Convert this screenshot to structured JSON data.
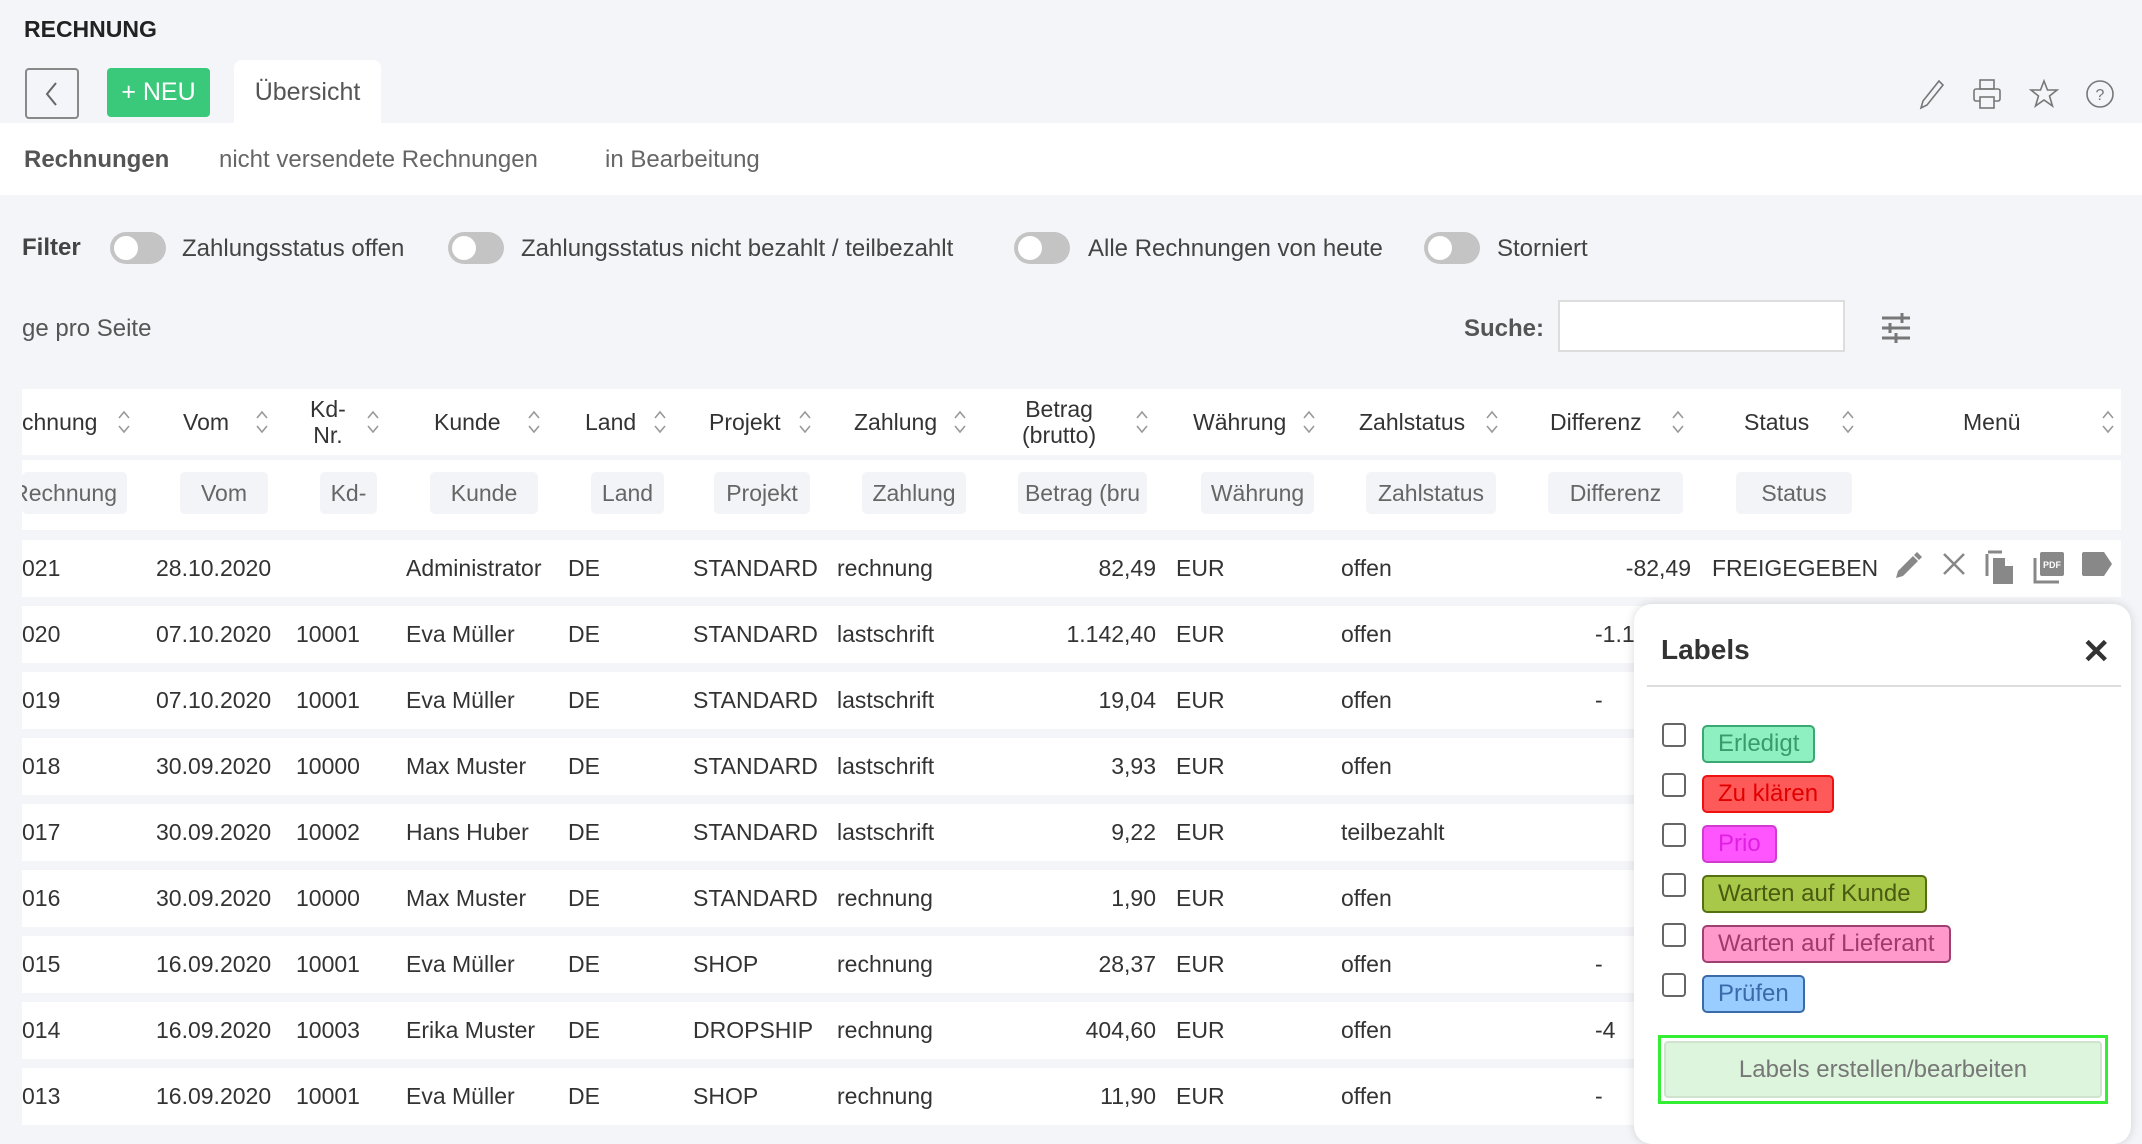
{
  "header": {
    "title": "RECHNUNG",
    "new_label": "+ NEU",
    "tab_label": "Übersicht"
  },
  "subtabs": [
    "Rechnungen",
    "nicht versendete Rechnungen",
    "in Bearbeitung"
  ],
  "filter": {
    "label": "Filter",
    "toggles": [
      {
        "label": "Zahlungsstatus offen",
        "on": false
      },
      {
        "label": "Zahlungsstatus nicht bezahlt / teilbezahlt",
        "on": false
      },
      {
        "label": "Alle Rechnungen von heute",
        "on": false
      },
      {
        "label": "Storniert",
        "on": false
      }
    ]
  },
  "per_page_label": "ge pro Seite",
  "search": {
    "label": "Suche:",
    "value": ""
  },
  "columns": [
    "chnung",
    "Vom",
    "Kd-\nNr.",
    "Kunde",
    "Land",
    "Projekt",
    "Zahlung",
    "Betrag\n(brutto)",
    "Währung",
    "Zahlstatus",
    "Differenz",
    "Status",
    "Menü"
  ],
  "column_filters": [
    "Rechnung",
    "Vom",
    "Kd-",
    "Kunde",
    "Land",
    "Projekt",
    "Zahlung",
    "Betrag (bru",
    "Währung",
    "Zahlstatus",
    "Differenz",
    "Status"
  ],
  "rows": [
    {
      "nr": "021",
      "vom": "28.10.2020",
      "kd": "",
      "kunde": "Administrator",
      "land": "DE",
      "projekt": "STANDARD",
      "zahlung": "rechnung",
      "betrag": "82,49",
      "waehrung": "EUR",
      "zahlstatus": "offen",
      "differenz": "-82,49",
      "status": "FREIGEGEBEN"
    },
    {
      "nr": "020",
      "vom": "07.10.2020",
      "kd": "10001",
      "kunde": "Eva Müller",
      "land": "DE",
      "projekt": "STANDARD",
      "zahlung": "lastschrift",
      "betrag": "1.142,40",
      "waehrung": "EUR",
      "zahlstatus": "offen",
      "differenz": "-1.1",
      "status": ""
    },
    {
      "nr": "019",
      "vom": "07.10.2020",
      "kd": "10001",
      "kunde": "Eva Müller",
      "land": "DE",
      "projekt": "STANDARD",
      "zahlung": "lastschrift",
      "betrag": "19,04",
      "waehrung": "EUR",
      "zahlstatus": "offen",
      "differenz": "-",
      "status": ""
    },
    {
      "nr": "018",
      "vom": "30.09.2020",
      "kd": "10000",
      "kunde": "Max Muster",
      "land": "DE",
      "projekt": "STANDARD",
      "zahlung": "lastschrift",
      "betrag": "3,93",
      "waehrung": "EUR",
      "zahlstatus": "offen",
      "differenz": "",
      "status": ""
    },
    {
      "nr": "017",
      "vom": "30.09.2020",
      "kd": "10002",
      "kunde": "Hans Huber",
      "land": "DE",
      "projekt": "STANDARD",
      "zahlung": "lastschrift",
      "betrag": "9,22",
      "waehrung": "EUR",
      "zahlstatus": "teilbezahlt",
      "differenz": "",
      "status": ""
    },
    {
      "nr": "016",
      "vom": "30.09.2020",
      "kd": "10000",
      "kunde": "Max Muster",
      "land": "DE",
      "projekt": "STANDARD",
      "zahlung": "rechnung",
      "betrag": "1,90",
      "waehrung": "EUR",
      "zahlstatus": "offen",
      "differenz": "",
      "status": ""
    },
    {
      "nr": "015",
      "vom": "16.09.2020",
      "kd": "10001",
      "kunde": "Eva Müller",
      "land": "DE",
      "projekt": "SHOP",
      "zahlung": "rechnung",
      "betrag": "28,37",
      "waehrung": "EUR",
      "zahlstatus": "offen",
      "differenz": "-",
      "status": ""
    },
    {
      "nr": "014",
      "vom": "16.09.2020",
      "kd": "10003",
      "kunde": "Erika Muster",
      "land": "DE",
      "projekt": "DROPSHIP",
      "zahlung": "rechnung",
      "betrag": "404,60",
      "waehrung": "EUR",
      "zahlstatus": "offen",
      "differenz": "-4",
      "status": ""
    },
    {
      "nr": "013",
      "vom": "16.09.2020",
      "kd": "10001",
      "kunde": "Eva Müller",
      "land": "DE",
      "projekt": "SHOP",
      "zahlung": "rechnung",
      "betrag": "11,90",
      "waehrung": "EUR",
      "zahlstatus": "offen",
      "differenz": "-",
      "status": ""
    }
  ],
  "row_menu_icons": [
    "pencil-icon",
    "close-icon",
    "copy-icon",
    "pdf-icon",
    "label-tag-icon"
  ],
  "labels_popup": {
    "title": "Labels",
    "items": [
      {
        "label": "Erledigt",
        "checked": false,
        "bg": "#8ef0c0",
        "border": "#3aa873",
        "text": "#3a9a6a"
      },
      {
        "label": "Zu klären",
        "checked": false,
        "bg": "#ff5a5a",
        "border": "#ee1111",
        "text": "#e00000"
      },
      {
        "label": "Prio",
        "checked": false,
        "bg": "#ff55ff",
        "border": "#d03ad0",
        "text": "#e020e0"
      },
      {
        "label": "Warten auf Kunde",
        "checked": false,
        "bg": "#a8c84a",
        "border": "#557010",
        "text": "#4a5a10"
      },
      {
        "label": "Warten auf Lieferant",
        "checked": false,
        "bg": "#ff99cc",
        "border": "#a04070",
        "text": "#a03a6a"
      },
      {
        "label": "Prüfen",
        "checked": false,
        "bg": "#99ccff",
        "border": "#3a6aa8",
        "text": "#3a6aa8"
      }
    ],
    "button_label": "Labels erstellen/bearbeiten"
  },
  "colors": {
    "accent": "#3ac97a",
    "background": "#f4f5f9"
  }
}
